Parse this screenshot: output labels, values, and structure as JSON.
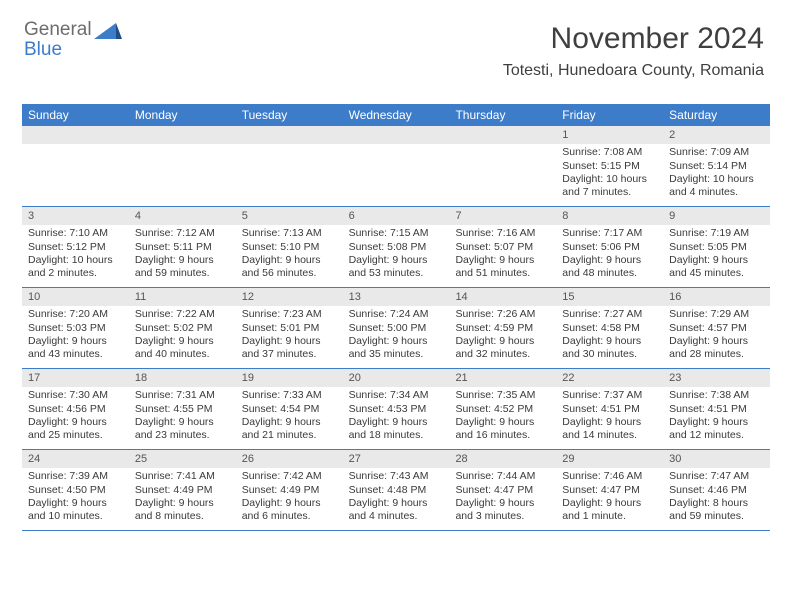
{
  "logo": {
    "part1": "General",
    "part2": "Blue"
  },
  "header": {
    "month_title": "November 2024",
    "location": "Totesti, Hunedoara County, Romania"
  },
  "colors": {
    "header_bg": "#3d7cc9",
    "header_text": "#ffffff",
    "daynum_bg": "#e9e9e9",
    "text": "#3a3a3a",
    "logo_gray": "#6d6d6d",
    "logo_blue": "#3d7cc9",
    "week_border": "#3d7cc9"
  },
  "day_names": [
    "Sunday",
    "Monday",
    "Tuesday",
    "Wednesday",
    "Thursday",
    "Friday",
    "Saturday"
  ],
  "weeks": [
    [
      {
        "n": "",
        "sr": "",
        "ss": "",
        "dl": ""
      },
      {
        "n": "",
        "sr": "",
        "ss": "",
        "dl": ""
      },
      {
        "n": "",
        "sr": "",
        "ss": "",
        "dl": ""
      },
      {
        "n": "",
        "sr": "",
        "ss": "",
        "dl": ""
      },
      {
        "n": "",
        "sr": "",
        "ss": "",
        "dl": ""
      },
      {
        "n": "1",
        "sr": "Sunrise: 7:08 AM",
        "ss": "Sunset: 5:15 PM",
        "dl": "Daylight: 10 hours and 7 minutes."
      },
      {
        "n": "2",
        "sr": "Sunrise: 7:09 AM",
        "ss": "Sunset: 5:14 PM",
        "dl": "Daylight: 10 hours and 4 minutes."
      }
    ],
    [
      {
        "n": "3",
        "sr": "Sunrise: 7:10 AM",
        "ss": "Sunset: 5:12 PM",
        "dl": "Daylight: 10 hours and 2 minutes."
      },
      {
        "n": "4",
        "sr": "Sunrise: 7:12 AM",
        "ss": "Sunset: 5:11 PM",
        "dl": "Daylight: 9 hours and 59 minutes."
      },
      {
        "n": "5",
        "sr": "Sunrise: 7:13 AM",
        "ss": "Sunset: 5:10 PM",
        "dl": "Daylight: 9 hours and 56 minutes."
      },
      {
        "n": "6",
        "sr": "Sunrise: 7:15 AM",
        "ss": "Sunset: 5:08 PM",
        "dl": "Daylight: 9 hours and 53 minutes."
      },
      {
        "n": "7",
        "sr": "Sunrise: 7:16 AM",
        "ss": "Sunset: 5:07 PM",
        "dl": "Daylight: 9 hours and 51 minutes."
      },
      {
        "n": "8",
        "sr": "Sunrise: 7:17 AM",
        "ss": "Sunset: 5:06 PM",
        "dl": "Daylight: 9 hours and 48 minutes."
      },
      {
        "n": "9",
        "sr": "Sunrise: 7:19 AM",
        "ss": "Sunset: 5:05 PM",
        "dl": "Daylight: 9 hours and 45 minutes."
      }
    ],
    [
      {
        "n": "10",
        "sr": "Sunrise: 7:20 AM",
        "ss": "Sunset: 5:03 PM",
        "dl": "Daylight: 9 hours and 43 minutes."
      },
      {
        "n": "11",
        "sr": "Sunrise: 7:22 AM",
        "ss": "Sunset: 5:02 PM",
        "dl": "Daylight: 9 hours and 40 minutes."
      },
      {
        "n": "12",
        "sr": "Sunrise: 7:23 AM",
        "ss": "Sunset: 5:01 PM",
        "dl": "Daylight: 9 hours and 37 minutes."
      },
      {
        "n": "13",
        "sr": "Sunrise: 7:24 AM",
        "ss": "Sunset: 5:00 PM",
        "dl": "Daylight: 9 hours and 35 minutes."
      },
      {
        "n": "14",
        "sr": "Sunrise: 7:26 AM",
        "ss": "Sunset: 4:59 PM",
        "dl": "Daylight: 9 hours and 32 minutes."
      },
      {
        "n": "15",
        "sr": "Sunrise: 7:27 AM",
        "ss": "Sunset: 4:58 PM",
        "dl": "Daylight: 9 hours and 30 minutes."
      },
      {
        "n": "16",
        "sr": "Sunrise: 7:29 AM",
        "ss": "Sunset: 4:57 PM",
        "dl": "Daylight: 9 hours and 28 minutes."
      }
    ],
    [
      {
        "n": "17",
        "sr": "Sunrise: 7:30 AM",
        "ss": "Sunset: 4:56 PM",
        "dl": "Daylight: 9 hours and 25 minutes."
      },
      {
        "n": "18",
        "sr": "Sunrise: 7:31 AM",
        "ss": "Sunset: 4:55 PM",
        "dl": "Daylight: 9 hours and 23 minutes."
      },
      {
        "n": "19",
        "sr": "Sunrise: 7:33 AM",
        "ss": "Sunset: 4:54 PM",
        "dl": "Daylight: 9 hours and 21 minutes."
      },
      {
        "n": "20",
        "sr": "Sunrise: 7:34 AM",
        "ss": "Sunset: 4:53 PM",
        "dl": "Daylight: 9 hours and 18 minutes."
      },
      {
        "n": "21",
        "sr": "Sunrise: 7:35 AM",
        "ss": "Sunset: 4:52 PM",
        "dl": "Daylight: 9 hours and 16 minutes."
      },
      {
        "n": "22",
        "sr": "Sunrise: 7:37 AM",
        "ss": "Sunset: 4:51 PM",
        "dl": "Daylight: 9 hours and 14 minutes."
      },
      {
        "n": "23",
        "sr": "Sunrise: 7:38 AM",
        "ss": "Sunset: 4:51 PM",
        "dl": "Daylight: 9 hours and 12 minutes."
      }
    ],
    [
      {
        "n": "24",
        "sr": "Sunrise: 7:39 AM",
        "ss": "Sunset: 4:50 PM",
        "dl": "Daylight: 9 hours and 10 minutes."
      },
      {
        "n": "25",
        "sr": "Sunrise: 7:41 AM",
        "ss": "Sunset: 4:49 PM",
        "dl": "Daylight: 9 hours and 8 minutes."
      },
      {
        "n": "26",
        "sr": "Sunrise: 7:42 AM",
        "ss": "Sunset: 4:49 PM",
        "dl": "Daylight: 9 hours and 6 minutes."
      },
      {
        "n": "27",
        "sr": "Sunrise: 7:43 AM",
        "ss": "Sunset: 4:48 PM",
        "dl": "Daylight: 9 hours and 4 minutes."
      },
      {
        "n": "28",
        "sr": "Sunrise: 7:44 AM",
        "ss": "Sunset: 4:47 PM",
        "dl": "Daylight: 9 hours and 3 minutes."
      },
      {
        "n": "29",
        "sr": "Sunrise: 7:46 AM",
        "ss": "Sunset: 4:47 PM",
        "dl": "Daylight: 9 hours and 1 minute."
      },
      {
        "n": "30",
        "sr": "Sunrise: 7:47 AM",
        "ss": "Sunset: 4:46 PM",
        "dl": "Daylight: 8 hours and 59 minutes."
      }
    ]
  ]
}
